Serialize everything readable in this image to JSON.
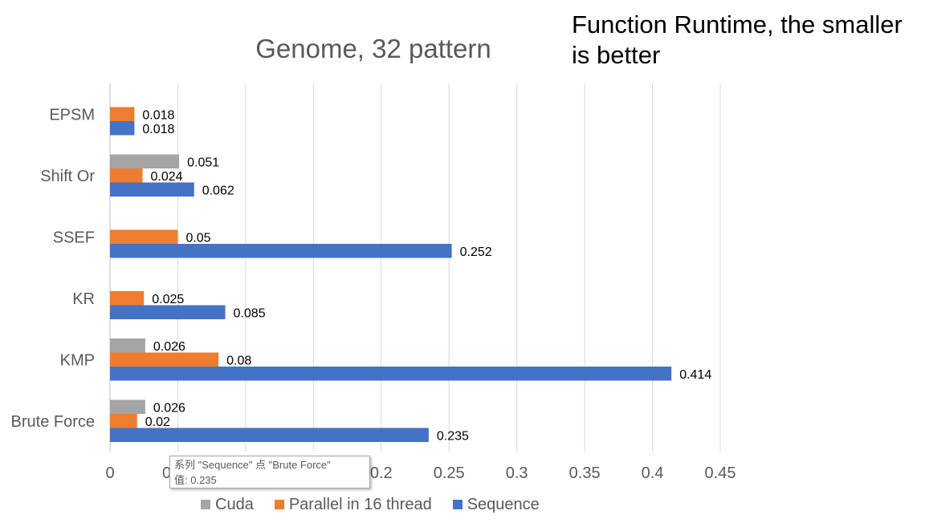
{
  "chart_data": {
    "type": "bar",
    "orientation": "horizontal",
    "title": "Genome, 32 pattern",
    "categories": [
      "EPSM",
      "Shift Or",
      "SSEF",
      "KR",
      "KMP",
      "Brute Force"
    ],
    "series": [
      {
        "name": "Cuda",
        "color": "#a5a5a5",
        "values": [
          null,
          0.051,
          null,
          null,
          0.026,
          0.026
        ]
      },
      {
        "name": "Parallel in 16 thread",
        "color": "#ed7d31",
        "values": [
          0.018,
          0.024,
          0.05,
          0.025,
          0.08,
          0.02
        ]
      },
      {
        "name": "Sequence",
        "color": "#4472c4",
        "values": [
          0.018,
          0.062,
          0.252,
          0.085,
          0.414,
          0.235
        ]
      }
    ],
    "xlim": [
      0,
      0.45
    ],
    "xticks": [
      0,
      0.05,
      0.1,
      0.15,
      0.2,
      0.25,
      0.3,
      0.35,
      0.4,
      0.45
    ],
    "xtick_labels": [
      "0",
      "0.05",
      "0.1",
      "0.15",
      "0.2",
      "0.25",
      "0.3",
      "0.35",
      "0.4",
      "0.45"
    ],
    "grid": "vertical",
    "legend_position": "bottom",
    "xlabel": "",
    "ylabel": ""
  },
  "note": "Function Runtime, the smaller is better",
  "tooltip": {
    "line1": "系列 \"Sequence\" 点 \"Brute Force\"",
    "line2": "值: 0.235"
  }
}
